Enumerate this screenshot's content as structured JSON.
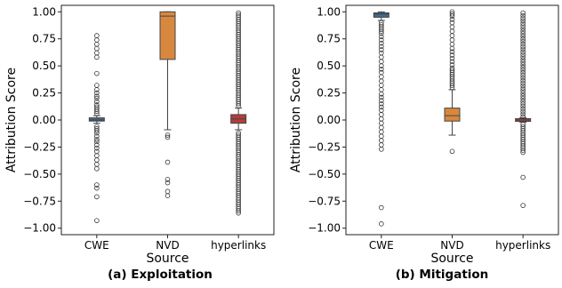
{
  "chart_data": [
    {
      "type": "box",
      "caption": "(a) Exploitation",
      "xlabel": "Source",
      "ylabel": "Attribution Score",
      "ylim": [
        -1.06,
        1.06
      ],
      "yticks": [
        -1.0,
        -0.75,
        -0.5,
        -0.25,
        0.0,
        0.25,
        0.5,
        0.75,
        1.0
      ],
      "ytick_labels": [
        "−1.00",
        "−0.75",
        "−0.50",
        "−0.25",
        "0.00",
        "0.25",
        "0.50",
        "0.75",
        "1.00"
      ],
      "categories": [
        "CWE",
        "NVD",
        "hyperlinks"
      ],
      "boxes": [
        {
          "name": "CWE",
          "color": "#3a6c96",
          "q1": -0.01,
          "median": 0.0,
          "q3": 0.02,
          "whisker_low": -0.03,
          "whisker_high": 0.04,
          "outliers": [
            0.78,
            0.74,
            0.7,
            0.66,
            0.62,
            0.58,
            0.43,
            0.32,
            0.28,
            0.25,
            0.22,
            0.2,
            0.17,
            0.14,
            0.12,
            0.1,
            0.08,
            0.06,
            -0.06,
            -0.08,
            -0.1,
            -0.12,
            -0.15,
            -0.18,
            -0.2,
            -0.23,
            -0.26,
            -0.29,
            -0.33,
            -0.37,
            -0.41,
            -0.45,
            -0.6,
            -0.63,
            -0.71,
            -0.93
          ]
        },
        {
          "name": "NVD",
          "color": "#d8883e",
          "q1": 0.56,
          "median": 0.96,
          "q3": 1.0,
          "whisker_low": -0.09,
          "whisker_high": 1.0,
          "outliers": [
            -0.14,
            -0.16,
            -0.39,
            -0.55,
            -0.58,
            -0.66,
            -0.7
          ]
        },
        {
          "name": "hyperlinks",
          "color": "#b43c3c",
          "q1": -0.03,
          "median": 0.01,
          "q3": 0.05,
          "whisker_low": -0.09,
          "whisker_high": 0.11,
          "outliers_dense": [
            [
              0.13,
              1.0,
              0.02
            ],
            [
              -0.86,
              -0.11,
              0.02
            ]
          ]
        }
      ]
    },
    {
      "type": "box",
      "caption": "(b) Mitigation",
      "xlabel": "Source",
      "ylabel": "Attribution Score",
      "ylim": [
        -1.06,
        1.06
      ],
      "yticks": [
        -1.0,
        -0.75,
        -0.5,
        -0.25,
        0.0,
        0.25,
        0.5,
        0.75,
        1.0
      ],
      "ytick_labels": [
        "−1.00",
        "−0.75",
        "−0.50",
        "−0.25",
        "0.00",
        "0.25",
        "0.50",
        "0.75",
        "1.00"
      ],
      "categories": [
        "CWE",
        "NVD",
        "hyperlinks"
      ],
      "boxes": [
        {
          "name": "CWE",
          "color": "#3a6c96",
          "q1": 0.95,
          "median": 0.98,
          "q3": 0.99,
          "whisker_low": 0.92,
          "whisker_high": 1.0,
          "outliers": [
            0.9,
            0.88,
            0.86,
            0.84,
            0.82,
            0.8,
            0.77,
            0.74,
            0.71,
            0.68,
            0.65,
            0.62,
            0.58,
            0.54,
            0.5,
            0.47,
            0.44,
            0.4,
            0.36,
            0.32,
            0.28,
            0.24,
            0.21,
            0.18,
            0.15,
            0.12,
            0.09,
            0.05,
            0.01,
            -0.03,
            -0.07,
            -0.11,
            -0.15,
            -0.19,
            -0.23,
            -0.27,
            -0.81,
            -0.96
          ]
        },
        {
          "name": "NVD",
          "color": "#d8883e",
          "q1": -0.01,
          "median": 0.04,
          "q3": 0.11,
          "whisker_low": -0.14,
          "whisker_high": 0.28,
          "outliers": [
            1.0,
            0.98,
            0.96,
            0.93,
            0.9,
            0.86,
            0.82,
            0.78,
            0.74,
            0.7,
            0.66,
            0.63,
            0.6,
            0.57,
            0.54,
            0.51,
            0.48,
            0.46,
            0.44,
            0.42,
            0.4,
            0.38,
            0.36,
            0.34,
            0.32,
            0.3,
            -0.29
          ]
        },
        {
          "name": "hyperlinks",
          "color": "#b43c3c",
          "q1": -0.005,
          "median": 0.0,
          "q3": 0.005,
          "whisker_low": -0.02,
          "whisker_high": 0.02,
          "outliers_dense": [
            [
              0.03,
              1.0,
              0.024
            ],
            [
              -0.3,
              -0.03,
              0.02
            ]
          ],
          "outliers": [
            -0.53,
            -0.79
          ]
        }
      ]
    }
  ]
}
